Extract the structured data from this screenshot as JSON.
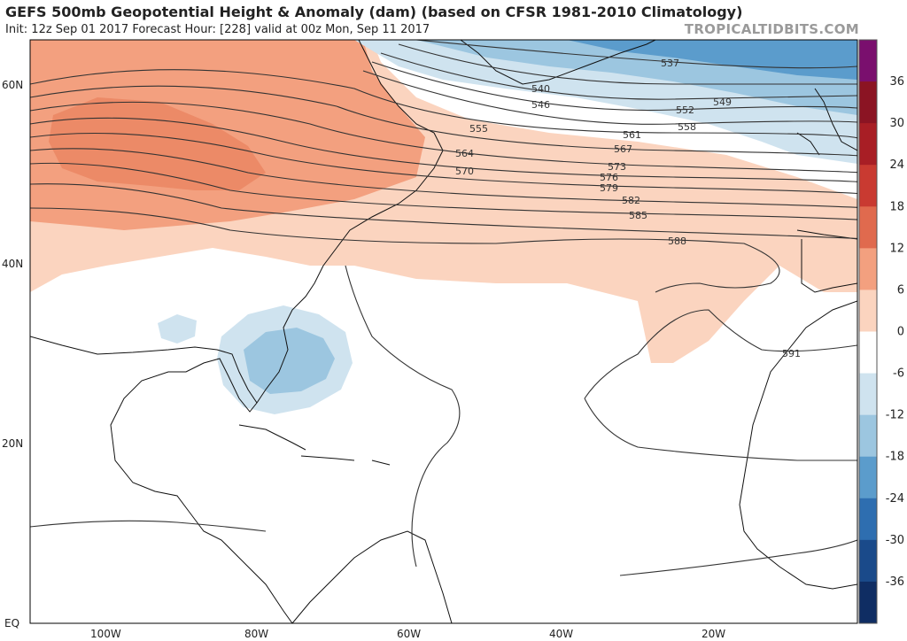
{
  "header": {
    "title": "GEFS 500mb Geopotential Height & Anomaly (dam) (based on CFSR 1981-2010 Climatology)",
    "subtitle": "Init: 12z Sep 01 2017   Forecast Hour: [228]   valid at 00z Mon, Sep 11 2017",
    "brand": "TROPICALTIDBITS.COM"
  },
  "map": {
    "lon_labels": [
      "100W",
      "80W",
      "60W",
      "40W",
      "20W"
    ],
    "lat_labels": [
      "60N",
      "40N",
      "20N",
      "EQ"
    ],
    "contour_labels": [
      "537",
      "540",
      "546",
      "549",
      "552",
      "555",
      "558",
      "561",
      "564",
      "567",
      "570",
      "573",
      "576",
      "579",
      "582",
      "585",
      "588",
      "591"
    ]
  },
  "colorbar": {
    "labels": [
      "36",
      "30",
      "24",
      "18",
      "12",
      "6",
      "0",
      "-6",
      "-12",
      "-18",
      "-24",
      "-30",
      "-36"
    ],
    "colors": [
      "#7a0f6e",
      "#8b1423",
      "#a81e25",
      "#c93a31",
      "#e06a4e",
      "#f3a07f",
      "#fbd4bf",
      "#ffffff",
      "#cfe3ef",
      "#9cc6e0",
      "#5b9ccc",
      "#2e6eb0",
      "#1a4a8a",
      "#0f2d63"
    ]
  }
}
